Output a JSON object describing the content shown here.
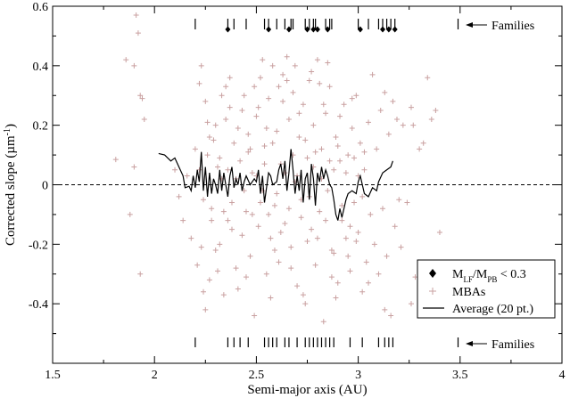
{
  "chart_data": {
    "type": "scatter",
    "xlabel": "Semi-major axis (AU)",
    "ylabel_main": "Corrected slope (µm",
    "ylabel_sup": "-1",
    "ylabel_end": ")",
    "xlim": [
      1.5,
      4.0
    ],
    "ylim": [
      -0.6,
      0.6
    ],
    "x_ticks": [
      1.5,
      2.0,
      2.5,
      3.0,
      3.5,
      4.0
    ],
    "x_tick_labels": [
      "1.5",
      "2",
      "2.5",
      "3",
      "3.5",
      "4"
    ],
    "y_ticks": [
      -0.4,
      -0.2,
      0,
      0.2,
      0.4,
      0.6
    ],
    "y_tick_labels": [
      "-0.4",
      "-0.2",
      "0",
      "0.2",
      "0.4",
      "0.6"
    ],
    "zero_line": {
      "y": 0,
      "style": "dashed"
    },
    "annotations": {
      "families_top": "Families",
      "families_bottom": "Families"
    },
    "legend": {
      "position": "bottom-right",
      "entries": [
        {
          "marker": "diamond",
          "label_main": "M",
          "sub1": "LF",
          "mid": "/M",
          "sub2": "PB",
          "tail": " < 0.3"
        },
        {
          "marker": "plus",
          "label": "MBAs"
        },
        {
          "marker": "line",
          "label": "Average (20 pt.)"
        }
      ]
    },
    "families_top_ticks": [
      2.2,
      2.36,
      2.39,
      2.45,
      2.54,
      2.56,
      2.6,
      2.64,
      2.67,
      2.68,
      2.74,
      2.76,
      2.78,
      2.79,
      2.84,
      2.86,
      2.87,
      3.0,
      3.05,
      3.1,
      3.12,
      3.14,
      3.16,
      3.18,
      3.49
    ],
    "families_top_diamonds": [
      2.36,
      2.56,
      2.66,
      2.75,
      2.78,
      2.8,
      2.85,
      3.01,
      3.12,
      3.15,
      3.18
    ],
    "families_bottom_ticks": [
      2.2,
      2.36,
      2.39,
      2.42,
      2.46,
      2.54,
      2.56,
      2.58,
      2.6,
      2.64,
      2.66,
      2.7,
      2.74,
      2.76,
      2.78,
      2.8,
      2.82,
      2.84,
      2.86,
      2.88,
      2.96,
      3.02,
      3.1,
      3.13,
      3.15,
      3.17,
      3.49
    ],
    "mba_points": [
      [
        1.81,
        0.085
      ],
      [
        1.86,
        0.42
      ],
      [
        1.9,
        0.4
      ],
      [
        1.91,
        0.57
      ],
      [
        1.92,
        0.51
      ],
      [
        1.93,
        0.3
      ],
      [
        1.94,
        0.29
      ],
      [
        1.95,
        0.22
      ],
      [
        1.88,
        -0.1
      ],
      [
        1.93,
        -0.3
      ],
      [
        1.9,
        0.06
      ],
      [
        2.1,
        0.05
      ],
      [
        2.12,
        -0.04
      ],
      [
        2.14,
        -0.12
      ],
      [
        2.16,
        0.03
      ],
      [
        2.18,
        -0.18
      ],
      [
        2.2,
        0.12
      ],
      [
        2.21,
        -0.27
      ],
      [
        2.22,
        0.34
      ],
      [
        2.23,
        0.4
      ],
      [
        2.24,
        -0.36
      ],
      [
        2.25,
        0.28
      ],
      [
        2.26,
        0.21
      ],
      [
        2.27,
        -0.32
      ],
      [
        2.28,
        -0.08
      ],
      [
        2.29,
        0.15
      ],
      [
        2.3,
        -0.22
      ],
      [
        2.31,
        0.06
      ],
      [
        2.32,
        -0.2
      ],
      [
        2.33,
        0.02
      ],
      [
        2.34,
        -0.37
      ],
      [
        2.35,
        0.33
      ],
      [
        2.36,
        -0.12
      ],
      [
        2.37,
        0.26
      ],
      [
        2.38,
        -0.06
      ],
      [
        2.39,
        0.14
      ],
      [
        2.4,
        -0.28
      ],
      [
        2.41,
        0.19
      ],
      [
        2.42,
        0.08
      ],
      [
        2.43,
        -0.17
      ],
      [
        2.44,
        0.3
      ],
      [
        2.45,
        -0.09
      ],
      [
        2.46,
        0.11
      ],
      [
        2.47,
        -0.24
      ],
      [
        2.48,
        0.04
      ],
      [
        2.49,
        -0.44
      ],
      [
        2.5,
        0.23
      ],
      [
        2.51,
        -0.14
      ],
      [
        2.52,
        0.36
      ],
      [
        2.53,
        -0.02
      ],
      [
        2.54,
        0.13
      ],
      [
        2.55,
        -0.3
      ],
      [
        2.56,
        0.29
      ],
      [
        2.57,
        -0.18
      ],
      [
        2.58,
        0.4
      ],
      [
        2.59,
        -0.07
      ],
      [
        2.6,
        0.18
      ],
      [
        2.61,
        -0.26
      ],
      [
        2.62,
        0.07
      ],
      [
        2.63,
        0.37
      ],
      [
        2.64,
        -0.13
      ],
      [
        2.65,
        0.43
      ],
      [
        2.66,
        0.22
      ],
      [
        2.67,
        -0.21
      ],
      [
        2.68,
        0.31
      ],
      [
        2.69,
        0.01
      ],
      [
        2.7,
        -0.34
      ],
      [
        2.71,
        0.16
      ],
      [
        2.72,
        -0.05
      ],
      [
        2.73,
        0.27
      ],
      [
        2.74,
        -0.4
      ],
      [
        2.75,
        0.09
      ],
      [
        2.76,
        0.35
      ],
      [
        2.77,
        -0.15
      ],
      [
        2.78,
        0.2
      ],
      [
        2.79,
        -0.27
      ],
      [
        2.8,
        0.42
      ],
      [
        2.81,
        -0.09
      ],
      [
        2.82,
        0.12
      ],
      [
        2.83,
        -0.46
      ],
      [
        2.84,
        0.24
      ],
      [
        2.85,
        -0.02
      ],
      [
        2.86,
        0.33
      ],
      [
        2.87,
        -0.22
      ],
      [
        2.88,
        0.05
      ],
      [
        2.89,
        0.16
      ],
      [
        2.9,
        -0.33
      ],
      [
        2.91,
        0.08
      ],
      [
        2.92,
        -0.12
      ],
      [
        2.93,
        0.27
      ],
      [
        2.94,
        -0.18
      ],
      [
        2.95,
        0.1
      ],
      [
        2.96,
        -0.29
      ],
      [
        2.97,
        0.19
      ],
      [
        2.98,
        -0.06
      ],
      [
        2.99,
        0.3
      ],
      [
        3.0,
        -0.16
      ],
      [
        3.01,
        0.14
      ],
      [
        3.02,
        -0.36
      ],
      [
        3.03,
        0.05
      ],
      [
        3.04,
        -0.26
      ],
      [
        3.05,
        0.21
      ],
      [
        3.06,
        -0.1
      ],
      [
        3.07,
        0.37
      ],
      [
        3.08,
        -0.2
      ],
      [
        3.09,
        0.12
      ],
      [
        3.1,
        -0.3
      ],
      [
        3.11,
        0.25
      ],
      [
        3.12,
        -0.08
      ],
      [
        3.13,
        0.31
      ],
      [
        3.14,
        -0.24
      ],
      [
        3.15,
        0.17
      ],
      [
        3.16,
        -0.44
      ],
      [
        3.17,
        0.28
      ],
      [
        3.18,
        -0.14
      ],
      [
        3.19,
        0.22
      ],
      [
        3.2,
        -0.05
      ],
      [
        3.22,
        0.2
      ],
      [
        3.24,
        -0.06
      ],
      [
        3.26,
        0.26
      ],
      [
        3.28,
        -0.31
      ],
      [
        3.3,
        0.12
      ],
      [
        3.32,
        0.14
      ],
      [
        3.34,
        0.36
      ],
      [
        3.36,
        0.22
      ],
      [
        3.38,
        0.25
      ],
      [
        3.4,
        -0.16
      ],
      [
        3.26,
        -0.4
      ],
      [
        3.27,
        0.2
      ],
      [
        2.22,
        0.05
      ],
      [
        2.24,
        -0.05
      ],
      [
        2.26,
        0.1
      ],
      [
        2.28,
        -0.12
      ],
      [
        2.3,
        0.2
      ],
      [
        2.32,
        0.09
      ],
      [
        2.34,
        -0.09
      ],
      [
        2.36,
        0.05
      ],
      [
        2.38,
        -0.15
      ],
      [
        2.4,
        0.02
      ],
      [
        2.44,
        -0.02
      ],
      [
        2.46,
        0.17
      ],
      [
        2.48,
        -0.1
      ],
      [
        2.5,
        0.03
      ],
      [
        2.52,
        -0.06
      ],
      [
        2.54,
        0.07
      ],
      [
        2.56,
        -0.1
      ],
      [
        2.58,
        0.14
      ],
      [
        2.6,
        -0.03
      ],
      [
        2.62,
        -0.16
      ],
      [
        2.64,
        0.04
      ],
      [
        2.66,
        -0.08
      ],
      [
        2.68,
        0.1
      ],
      [
        2.7,
        0.03
      ],
      [
        2.72,
        -0.11
      ],
      [
        2.74,
        0.15
      ],
      [
        2.76,
        -0.04
      ],
      [
        2.78,
        0.06
      ],
      [
        2.8,
        -0.18
      ],
      [
        2.82,
        0.02
      ],
      [
        2.84,
        -0.12
      ],
      [
        2.86,
        0.08
      ],
      [
        2.88,
        -0.23
      ],
      [
        2.9,
        0.13
      ],
      [
        2.92,
        -0.07
      ],
      [
        2.94,
        0.04
      ],
      [
        2.96,
        -0.14
      ],
      [
        2.98,
        0.09
      ],
      [
        3.0,
        0.03
      ],
      [
        3.02,
        -0.04
      ],
      [
        2.23,
        -0.21
      ],
      [
        2.27,
        0.16
      ],
      [
        2.31,
        -0.29
      ],
      [
        2.35,
        0.22
      ],
      [
        2.43,
        0.25
      ],
      [
        2.47,
        0.12
      ],
      [
        2.51,
        0.26
      ],
      [
        2.55,
        0.19
      ],
      [
        2.59,
        -0.22
      ],
      [
        2.63,
        0.28
      ],
      [
        2.67,
        -0.28
      ],
      [
        2.71,
        0.24
      ],
      [
        2.75,
        -0.19
      ],
      [
        2.79,
        0.11
      ],
      [
        2.83,
        0.27
      ],
      [
        2.87,
        -0.31
      ],
      [
        2.91,
        0.23
      ],
      [
        2.95,
        -0.24
      ],
      [
        2.99,
        -0.19
      ],
      [
        3.03,
        0.11
      ],
      [
        2.25,
        -0.42
      ],
      [
        2.33,
        0.3
      ],
      [
        2.41,
        -0.35
      ],
      [
        2.49,
        0.33
      ],
      [
        2.57,
        -0.38
      ],
      [
        2.65,
        0.35
      ],
      [
        2.73,
        -0.37
      ],
      [
        2.81,
        0.34
      ],
      [
        2.89,
        -0.38
      ],
      [
        2.97,
        0.29
      ],
      [
        3.05,
        -0.33
      ],
      [
        3.13,
        -0.42
      ],
      [
        3.21,
        -0.21
      ],
      [
        2.37,
        0.36
      ],
      [
        2.53,
        0.42
      ],
      [
        2.69,
        0.4
      ],
      [
        2.77,
        0.38
      ],
      [
        2.85,
        0.41
      ],
      [
        2.61,
        0.33
      ],
      [
        2.45,
        -0.31
      ]
    ],
    "average_line": [
      [
        2.02,
        0.105
      ],
      [
        2.05,
        0.1
      ],
      [
        2.08,
        0.08
      ],
      [
        2.1,
        0.09
      ],
      [
        2.12,
        0.06
      ],
      [
        2.14,
        0.03
      ],
      [
        2.15,
        -0.01
      ],
      [
        2.17,
        -0.005
      ],
      [
        2.18,
        -0.02
      ],
      [
        2.19,
        0.03
      ],
      [
        2.2,
        -0.01
      ],
      [
        2.21,
        0.05
      ],
      [
        2.22,
        0.01
      ],
      [
        2.23,
        0.11
      ],
      [
        2.24,
        -0.02
      ],
      [
        2.25,
        0.06
      ],
      [
        2.26,
        -0.04
      ],
      [
        2.27,
        0.04
      ],
      [
        2.28,
        -0.03
      ],
      [
        2.29,
        0.02
      ],
      [
        2.3,
        0.0
      ],
      [
        2.31,
        -0.03
      ],
      [
        2.32,
        0.05
      ],
      [
        2.33,
        -0.02
      ],
      [
        2.34,
        0.04
      ],
      [
        2.35,
        0.0
      ],
      [
        2.36,
        -0.04
      ],
      [
        2.37,
        0.03
      ],
      [
        2.38,
        0.06
      ],
      [
        2.39,
        -0.01
      ],
      [
        2.4,
        0.02
      ],
      [
        2.41,
        0.0
      ],
      [
        2.42,
        0.04
      ],
      [
        2.43,
        -0.02
      ],
      [
        2.44,
        0.01
      ],
      [
        2.45,
        0.03
      ],
      [
        2.47,
        0.0
      ],
      [
        2.49,
        0.02
      ],
      [
        2.5,
        0.01
      ],
      [
        2.51,
        0.05
      ],
      [
        2.52,
        -0.03
      ],
      [
        2.53,
        0.03
      ],
      [
        2.54,
        -0.06
      ],
      [
        2.55,
        -0.01
      ],
      [
        2.56,
        0.04
      ],
      [
        2.57,
        0.03
      ],
      [
        2.58,
        0.0
      ],
      [
        2.6,
        0.01
      ],
      [
        2.61,
        0.05
      ],
      [
        2.62,
        0.07
      ],
      [
        2.63,
        0.02
      ],
      [
        2.64,
        0.08
      ],
      [
        2.65,
        -0.02
      ],
      [
        2.66,
        0.04
      ],
      [
        2.67,
        0.12
      ],
      [
        2.68,
        0.05
      ],
      [
        2.69,
        -0.03
      ],
      [
        2.7,
        0.03
      ],
      [
        2.71,
        -0.02
      ],
      [
        2.72,
        0.05
      ],
      [
        2.73,
        -0.06
      ],
      [
        2.74,
        0.02
      ],
      [
        2.75,
        0.04
      ],
      [
        2.76,
        -0.05
      ],
      [
        2.77,
        0.07
      ],
      [
        2.78,
        0.02
      ],
      [
        2.79,
        -0.07
      ],
      [
        2.8,
        0.04
      ],
      [
        2.81,
        0.01
      ],
      [
        2.82,
        0.06
      ],
      [
        2.83,
        0.02
      ],
      [
        2.84,
        0.05
      ],
      [
        2.85,
        0.03
      ],
      [
        2.86,
        0.0
      ],
      [
        2.87,
        -0.01
      ],
      [
        2.88,
        -0.05
      ],
      [
        2.89,
        -0.1
      ],
      [
        2.9,
        -0.12
      ],
      [
        2.91,
        -0.08
      ],
      [
        2.92,
        -0.11
      ],
      [
        2.93,
        -0.08
      ],
      [
        2.94,
        -0.05
      ],
      [
        2.95,
        -0.03
      ],
      [
        2.97,
        -0.02
      ],
      [
        2.99,
        -0.03
      ],
      [
        3.0,
        0.01
      ],
      [
        3.01,
        0.03
      ],
      [
        3.02,
        0.0
      ],
      [
        3.03,
        -0.03
      ],
      [
        3.05,
        -0.04
      ],
      [
        3.07,
        -0.01
      ],
      [
        3.09,
        -0.02
      ],
      [
        3.1,
        0.01
      ],
      [
        3.12,
        0.04
      ],
      [
        3.14,
        0.05
      ],
      [
        3.16,
        0.06
      ],
      [
        3.17,
        0.08
      ]
    ],
    "colors": {
      "mba": "#c9a0a0",
      "average": "#000000",
      "marker": "#000000",
      "axis": "#000000"
    }
  }
}
